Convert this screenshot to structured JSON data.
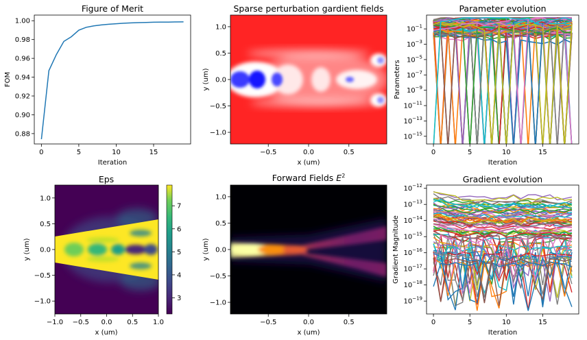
{
  "chart_data": [
    {
      "type": "line",
      "title": "Figure of Merit",
      "xlabel": "Iteration",
      "ylabel": "FOM",
      "xlim": [
        -0.95,
        19.95
      ],
      "ylim": [
        0.869,
        1.006
      ],
      "xticks": [
        0,
        5,
        10,
        15
      ],
      "xtick_labels": [
        "0",
        "5",
        "10",
        "15"
      ],
      "yticks": [
        0.88,
        0.9,
        0.92,
        0.94,
        0.96,
        0.98,
        1.0
      ],
      "ytick_labels": [
        "0.88",
        "0.90",
        "0.92",
        "0.94",
        "0.96",
        "0.98",
        "1.00"
      ],
      "color": "#1f77b4",
      "x": [
        0,
        1,
        2,
        3,
        4,
        5,
        6,
        7,
        8,
        9,
        10,
        11,
        12,
        13,
        14,
        15,
        16,
        17,
        18,
        19
      ],
      "y": [
        0.874,
        0.947,
        0.964,
        0.978,
        0.983,
        0.99,
        0.993,
        0.9945,
        0.9955,
        0.9962,
        0.9968,
        0.9973,
        0.9977,
        0.998,
        0.9982,
        0.9984,
        0.9985,
        0.9986,
        0.9987,
        0.9988
      ]
    },
    {
      "type": "heatmap",
      "title": "Sparse perturbation gardient fields",
      "xlabel": "x (um)",
      "ylabel": "y (um)",
      "colormap": "bwr",
      "xlim": [
        -0.97,
        0.97
      ],
      "ylim": [
        -1.22,
        1.22
      ],
      "xticks": [
        -0.5,
        0.0,
        0.5
      ],
      "xtick_labels": [
        "−0.5",
        "0.0",
        "0.5"
      ],
      "yticks": [
        -1.0,
        -0.5,
        0.0,
        0.5,
        1.0
      ],
      "ytick_labels": [
        "−1.0",
        "−0.5",
        "0.0",
        "0.5",
        "1.0"
      ]
    },
    {
      "type": "line",
      "title": "Parameter evolution",
      "xlabel": "Iteration",
      "ylabel": "Parameters",
      "yscale": "log",
      "xlim": [
        -0.95,
        19.95
      ],
      "ylim_exp": [
        -16,
        0.8
      ],
      "xticks": [
        0,
        5,
        10,
        15
      ],
      "xtick_labels": [
        "0",
        "5",
        "10",
        "15"
      ],
      "ytick_exps": [
        -1,
        -3,
        -5,
        -7,
        -9,
        -11,
        -13,
        -15
      ],
      "ytick_exp_labels": [
        "−1",
        "−3",
        "−5",
        "−7",
        "−9",
        "−11",
        "−13",
        "−15"
      ],
      "tick_base": "10"
    },
    {
      "type": "heatmap",
      "title": "Eps",
      "xlabel": "x (um)",
      "ylabel": "y (um)",
      "colormap": "viridis",
      "xlim": [
        -1.0,
        1.0
      ],
      "ylim": [
        -1.25,
        1.25
      ],
      "xticks": [
        -1.0,
        -0.5,
        0.0,
        0.5,
        1.0
      ],
      "xtick_labels": [
        "−1.0",
        "−0.5",
        "0.0",
        "0.5",
        "1.0"
      ],
      "yticks": [
        -1.0,
        -0.5,
        0.0,
        0.5,
        1.0
      ],
      "ytick_labels": [
        "−1.0",
        "−0.5",
        "0.0",
        "0.5",
        "1.0"
      ],
      "colorbar_range": [
        2.3,
        7.9
      ],
      "colorbar_ticks": [
        3,
        4,
        5,
        6,
        7
      ],
      "colorbar_tick_labels": [
        "3",
        "4",
        "5",
        "6",
        "7"
      ]
    },
    {
      "type": "heatmap",
      "title": "Forward Fields ",
      "title_math": "E",
      "title_sup": "2",
      "xlabel": "x (um)",
      "ylabel": "y (um)",
      "colormap": "inferno",
      "xlim": [
        -0.97,
        0.97
      ],
      "ylim": [
        -1.22,
        1.22
      ],
      "xticks": [
        -0.5,
        0.0,
        0.5
      ],
      "xtick_labels": [
        "−0.5",
        "0.0",
        "0.5"
      ],
      "yticks": [
        -1.0,
        -0.5,
        0.0,
        0.5,
        1.0
      ],
      "ytick_labels": [
        "−1.0",
        "−0.5",
        "0.0",
        "0.5",
        "1.0"
      ]
    },
    {
      "type": "line",
      "title": "Gradient evolution",
      "xlabel": "Iteration",
      "ylabel": "Gradient Magnitude",
      "yscale": "log",
      "xlim": [
        -0.95,
        19.95
      ],
      "ylim_exp": [
        -19.8,
        -11.8
      ],
      "xticks": [
        0,
        5,
        10,
        15
      ],
      "xtick_labels": [
        "0",
        "5",
        "10",
        "15"
      ],
      "ytick_exps": [
        -12,
        -13,
        -14,
        -15,
        -16,
        -17,
        -18,
        -19
      ],
      "ytick_exp_labels": [
        "−12",
        "−13",
        "−14",
        "−15",
        "−16",
        "−17",
        "−18",
        "−19"
      ],
      "tick_base": "10"
    }
  ],
  "palette": [
    "#1f77b4",
    "#ff7f0e",
    "#2ca02c",
    "#d62728",
    "#9467bd",
    "#8c564b",
    "#e377c2",
    "#7f7f7f",
    "#bcbd22",
    "#17becf"
  ]
}
